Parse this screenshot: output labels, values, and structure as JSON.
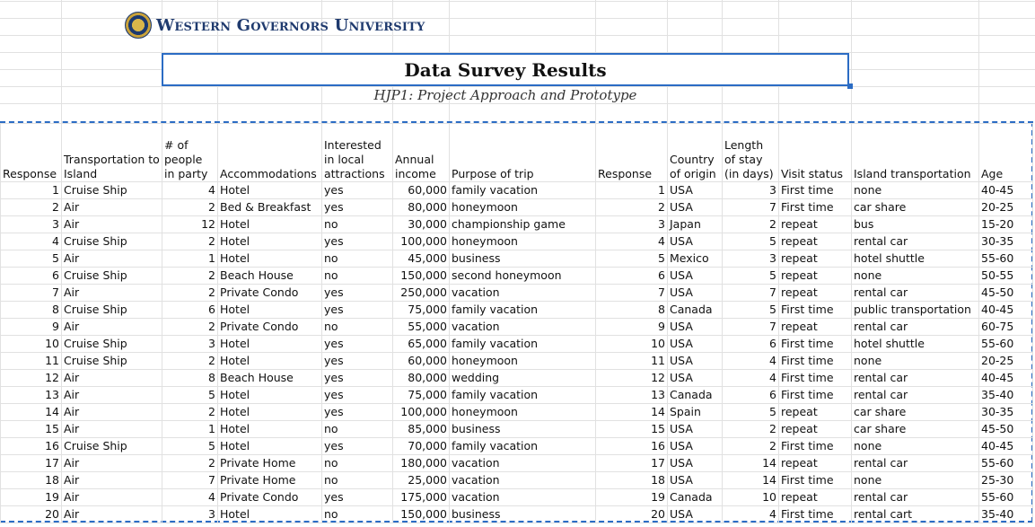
{
  "header": {
    "university": "Western Governors University",
    "title": "Data Survey Results",
    "subtitle": "HJP1: Project Approach and Prototype"
  },
  "colors": {
    "accent": "#2b6cc4",
    "brand_navy": "#1f3a6e",
    "gridline": "#e1e1e1"
  },
  "icons": {
    "logo": "wgu-seal-icon"
  },
  "table": {
    "columns": [
      "Response",
      "Transportation to Island",
      "# of people in party",
      "Accommodations",
      "Interested in local attractions",
      "Annual income",
      "Purpose of trip",
      "Response",
      "Country of origin",
      "Length of stay (in days)",
      "Visit status",
      "Island transportation",
      "Age"
    ],
    "rows": [
      [
        "1",
        "Cruise Ship",
        "4",
        "Hotel",
        "yes",
        "60,000",
        "family vacation",
        "1",
        "USA",
        "3",
        "First time",
        "none",
        "40-45"
      ],
      [
        "2",
        "Air",
        "2",
        "Bed & Breakfast",
        "yes",
        "80,000",
        "honeymoon",
        "2",
        "USA",
        "7",
        "First time",
        "car share",
        "20-25"
      ],
      [
        "3",
        "Air",
        "12",
        "Hotel",
        "no",
        "30,000",
        "championship game",
        "3",
        "Japan",
        "2",
        "repeat",
        "bus",
        "15-20"
      ],
      [
        "4",
        "Cruise Ship",
        "2",
        "Hotel",
        "yes",
        "100,000",
        "honeymoon",
        "4",
        "USA",
        "5",
        "repeat",
        "rental car",
        "30-35"
      ],
      [
        "5",
        "Air",
        "1",
        "Hotel",
        "no",
        "45,000",
        "business",
        "5",
        "Mexico",
        "3",
        "repeat",
        "hotel shuttle",
        "55-60"
      ],
      [
        "6",
        "Cruise Ship",
        "2",
        "Beach House",
        "no",
        "150,000",
        "second honeymoon",
        "6",
        "USA",
        "5",
        "repeat",
        "none",
        "50-55"
      ],
      [
        "7",
        "Air",
        "2",
        "Private Condo",
        "yes",
        "250,000",
        "vacation",
        "7",
        "USA",
        "7",
        "repeat",
        "rental car",
        "45-50"
      ],
      [
        "8",
        "Cruise Ship",
        "6",
        "Hotel",
        "yes",
        "75,000",
        "family vacation",
        "8",
        "Canada",
        "5",
        "First time",
        "public transportation",
        "40-45"
      ],
      [
        "9",
        "Air",
        "2",
        "Private Condo",
        "no",
        "55,000",
        "vacation",
        "9",
        "USA",
        "7",
        "repeat",
        "rental car",
        "60-75"
      ],
      [
        "10",
        "Cruise Ship",
        "3",
        "Hotel",
        "yes",
        "65,000",
        "family vacation",
        "10",
        "USA",
        "6",
        "First time",
        "hotel shuttle",
        "55-60"
      ],
      [
        "11",
        "Cruise Ship",
        "2",
        "Hotel",
        "yes",
        "60,000",
        "honeymoon",
        "11",
        "USA",
        "4",
        "First time",
        "none",
        "20-25"
      ],
      [
        "12",
        "Air",
        "8",
        "Beach House",
        "yes",
        "80,000",
        "wedding",
        "12",
        "USA",
        "4",
        "First time",
        "rental car",
        "40-45"
      ],
      [
        "13",
        "Air",
        "5",
        "Hotel",
        "yes",
        "75,000",
        "family vacation",
        "13",
        "Canada",
        "6",
        "First time",
        "rental car",
        "35-40"
      ],
      [
        "14",
        "Air",
        "2",
        "Hotel",
        "yes",
        "100,000",
        "honeymoon",
        "14",
        "Spain",
        "5",
        "repeat",
        "car share",
        "30-35"
      ],
      [
        "15",
        "Air",
        "1",
        "Hotel",
        "no",
        "85,000",
        "business",
        "15",
        "USA",
        "2",
        "repeat",
        "car share",
        "45-50"
      ],
      [
        "16",
        "Cruise Ship",
        "5",
        "Hotel",
        "yes",
        "70,000",
        "family vacation",
        "16",
        "USA",
        "2",
        "First time",
        "none",
        "40-45"
      ],
      [
        "17",
        "Air",
        "2",
        "Private Home",
        "no",
        "180,000",
        "vacation",
        "17",
        "USA",
        "14",
        "repeat",
        "rental car",
        "55-60"
      ],
      [
        "18",
        "Air",
        "7",
        "Private Home",
        "no",
        "25,000",
        "vacation",
        "18",
        "USA",
        "14",
        "First time",
        "none",
        "25-30"
      ],
      [
        "19",
        "Air",
        "4",
        "Private Condo",
        "yes",
        "175,000",
        "vacation",
        "19",
        "Canada",
        "10",
        "repeat",
        "rental car",
        "55-60"
      ],
      [
        "20",
        "Air",
        "3",
        "Hotel",
        "no",
        "150,000",
        "business",
        "20",
        "USA",
        "4",
        "First time",
        "rental cart",
        "35-40"
      ]
    ]
  }
}
